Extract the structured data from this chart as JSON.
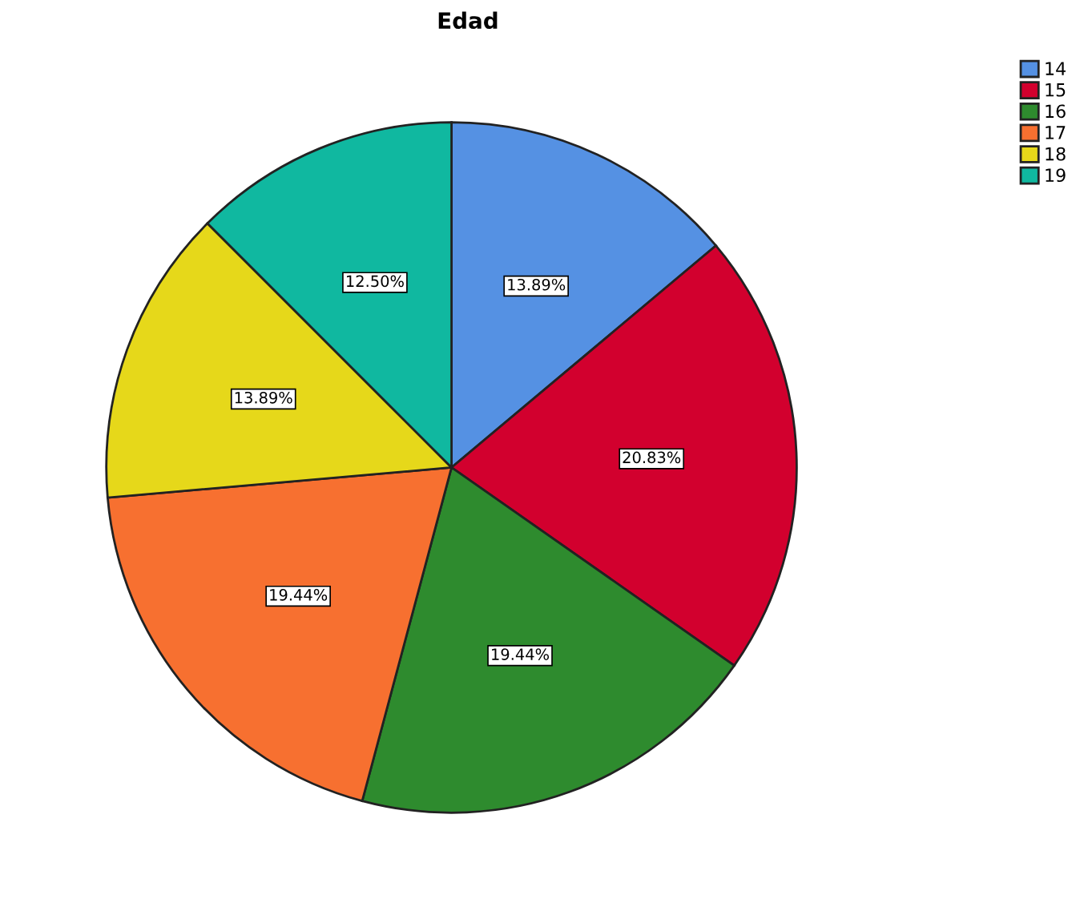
{
  "chart_data": {
    "type": "pie",
    "title": "Edad",
    "categories": [
      "14",
      "15",
      "16",
      "17",
      "18",
      "19"
    ],
    "values": [
      13.89,
      20.83,
      19.44,
      19.44,
      13.89,
      12.5
    ],
    "value_labels": [
      "13.89%",
      "20.83%",
      "19.44%",
      "19.44%",
      "13.89%",
      "12.50%"
    ],
    "colors": [
      "#5591e3",
      "#d2002e",
      "#2e8b2e",
      "#f77030",
      "#e6d81a",
      "#10b8a0"
    ],
    "legend": "top right"
  }
}
